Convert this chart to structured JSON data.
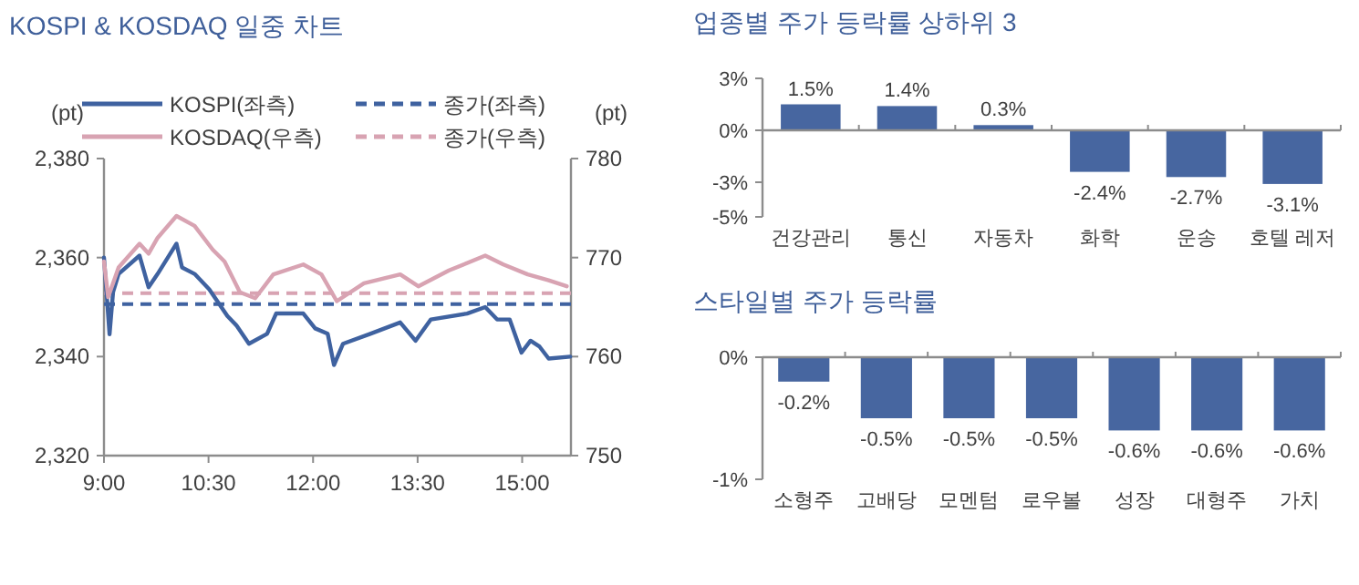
{
  "chart_data": [
    {
      "type": "line",
      "title": "KOSPI & KOSDAQ  일중 차트",
      "ylabel": "(pt)",
      "y2label": "(pt)",
      "legend": "top",
      "xlim": [
        9,
        15.7
      ],
      "xticks": [
        {
          "value": 9,
          "label": "9:00"
        },
        {
          "value": 10.5,
          "label": "10:30"
        },
        {
          "value": 12,
          "label": "12:00"
        },
        {
          "value": 13.5,
          "label": "13:30"
        },
        {
          "value": 15,
          "label": "15:00"
        }
      ],
      "ylim": [
        2320,
        2380
      ],
      "yticks": [
        {
          "value": 2320,
          "label": "2,320"
        },
        {
          "value": 2340,
          "label": "2,340"
        },
        {
          "value": 2360,
          "label": "2,360"
        },
        {
          "value": 2380,
          "label": "2,380"
        }
      ],
      "y2lim": [
        750,
        780
      ],
      "y2ticks": [
        750,
        760,
        770,
        780
      ],
      "series": [
        {
          "name": "KOSPI(좌측)",
          "color": "#3f62a0",
          "x": [
            9.0,
            9.08,
            9.13,
            9.21,
            9.51,
            9.64,
            9.77,
            10.04,
            10.12,
            10.3,
            10.51,
            10.77,
            10.9,
            11.08,
            11.34,
            11.47,
            11.86,
            12.03,
            12.21,
            12.3,
            12.43,
            12.82,
            13.25,
            13.47,
            13.69,
            14.21,
            14.47,
            14.64,
            14.82,
            14.99,
            15.12,
            15.25,
            15.38,
            15.69
          ],
          "values": [
            2360,
            2344.5,
            2353,
            2356.7,
            2360.4,
            2354,
            2356.7,
            2362.8,
            2358,
            2356.7,
            2353.6,
            2348.2,
            2346.3,
            2342.6,
            2344.6,
            2348.7,
            2348.7,
            2345.7,
            2344.6,
            2338.3,
            2342.6,
            2344.6,
            2346.9,
            2343.2,
            2347.5,
            2348.7,
            2350,
            2347.5,
            2347.5,
            2340.8,
            2343.2,
            2342,
            2339.6,
            2340
          ]
        },
        {
          "name": "KOSDAQ(우측)",
          "color": "#d8a3b2",
          "axis": "y2",
          "x": [
            9.0,
            9.06,
            9.21,
            9.51,
            9.64,
            9.77,
            10.04,
            10.3,
            10.56,
            10.73,
            10.95,
            11.17,
            11.43,
            11.86,
            12.12,
            12.34,
            12.73,
            13.25,
            13.51,
            13.95,
            14.47,
            14.73,
            15.08,
            15.38,
            15.64
          ],
          "values": [
            769.6,
            766,
            769,
            771.4,
            770.4,
            772,
            774.2,
            773.2,
            770.8,
            769.6,
            766.5,
            765.9,
            768.3,
            769.3,
            768.3,
            765.6,
            767.4,
            768.3,
            767.1,
            768.7,
            770.2,
            769.3,
            768.3,
            767.7,
            767.1
          ]
        }
      ],
      "ref_lines": [
        {
          "axis": "y",
          "value": 2350.6,
          "label": "종가(좌측)",
          "color": "#3f62a0",
          "line_style": "dashed"
        },
        {
          "axis": "y2",
          "value": 766.4,
          "label": "종가(우측)",
          "color": "#d8a3b2",
          "line_style": "dashed"
        }
      ]
    },
    {
      "type": "bar",
      "title": "업종별 주가 등락률 상하위 3",
      "categories": [
        "건강관리",
        "통신",
        "자동차",
        "화학",
        "운송",
        "호텔 레저"
      ],
      "values": [
        1.5,
        1.4,
        0.3,
        -2.4,
        -2.7,
        -3.1
      ],
      "value_labels": [
        "1.5%",
        "1.4%",
        "0.3%",
        "-2.4%",
        "-2.7%",
        "-3.1%"
      ],
      "color": "#4766a0",
      "ylim": [
        -5,
        3
      ],
      "yticks": [
        {
          "value": 3,
          "label": "3%"
        },
        {
          "value": 0,
          "label": "0%"
        },
        {
          "value": -3,
          "label": "-3%"
        },
        {
          "value": -5,
          "label": "-5%"
        }
      ]
    },
    {
      "type": "bar",
      "title": "스타일별 주가 등락률",
      "categories": [
        "소형주",
        "고배당",
        "모멘텀",
        "로우볼",
        "성장",
        "대형주",
        "가치"
      ],
      "values": [
        -0.2,
        -0.5,
        -0.5,
        -0.5,
        -0.6,
        -0.6,
        -0.6
      ],
      "value_labels": [
        "-0.2%",
        "-0.5%",
        "-0.5%",
        "-0.5%",
        "-0.6%",
        "-0.6%",
        "-0.6%"
      ],
      "color": "#4766a0",
      "ylim": [
        -1,
        0
      ],
      "yticks": [
        {
          "value": 0,
          "label": "0%"
        },
        {
          "value": -1,
          "label": "-1%"
        }
      ]
    }
  ]
}
